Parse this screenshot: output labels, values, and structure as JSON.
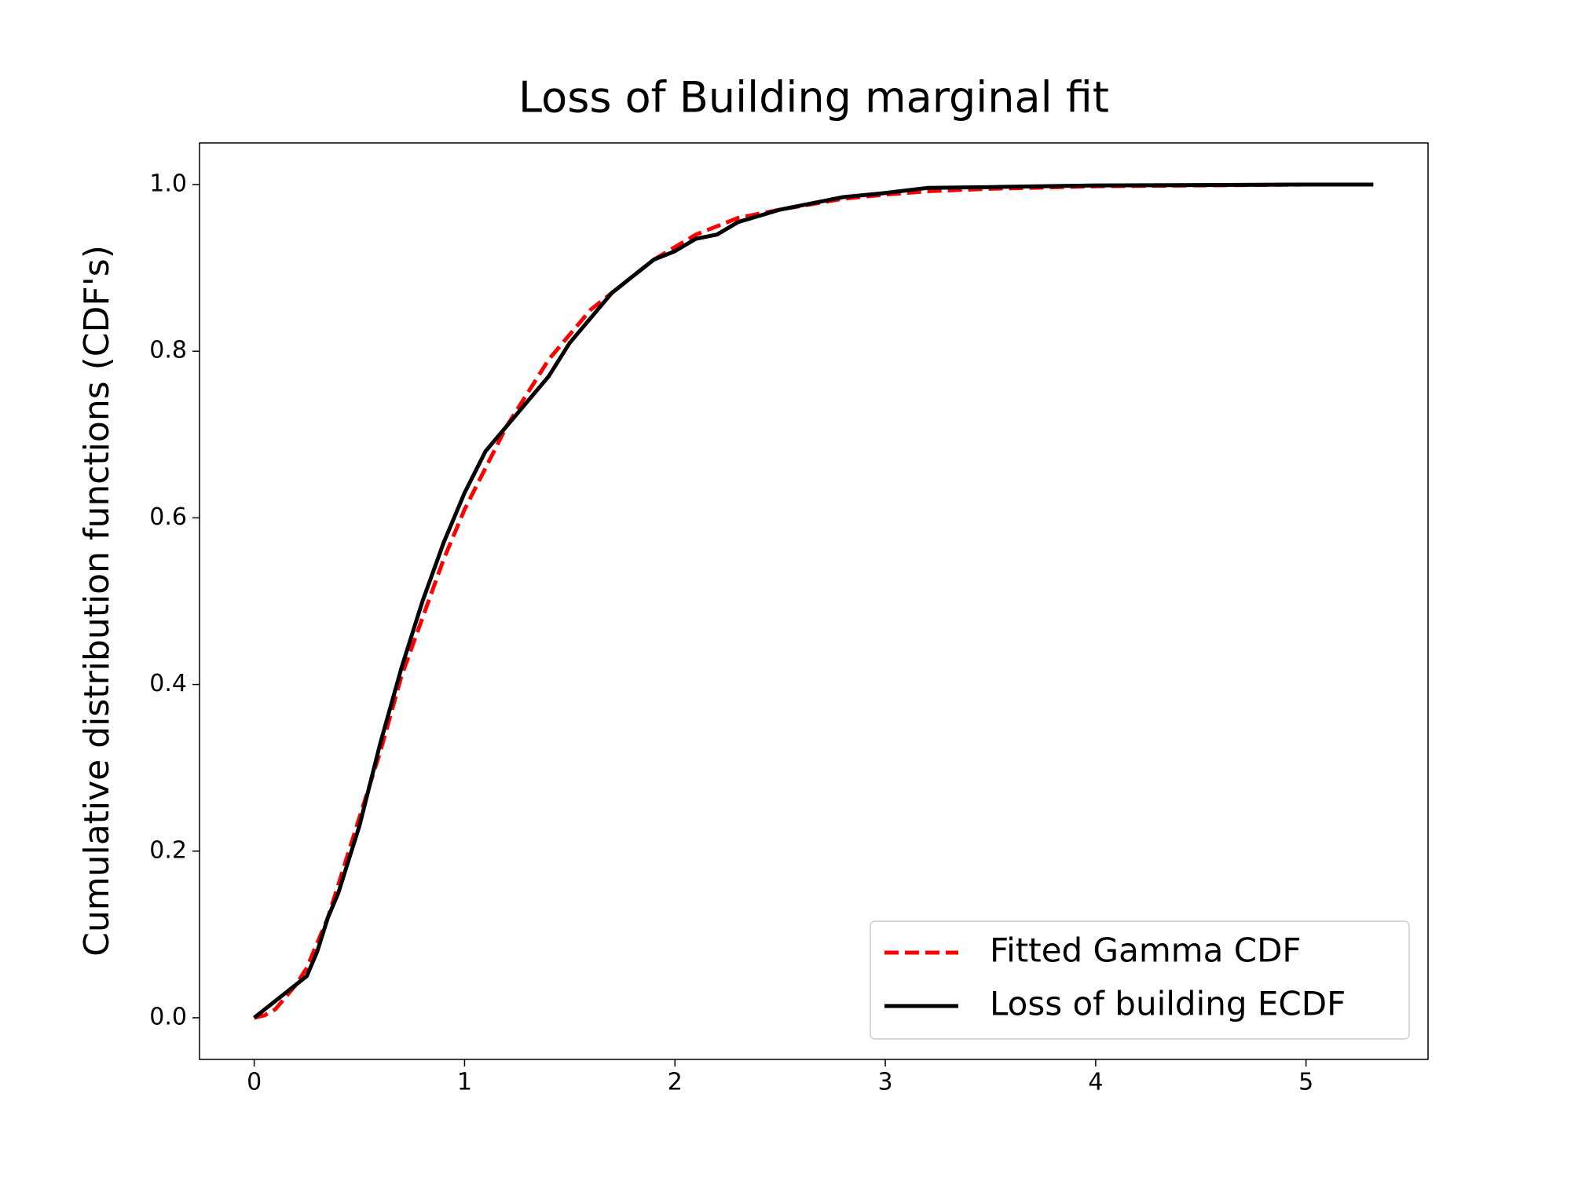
{
  "chart_data": {
    "type": "line",
    "title": "Loss of Building marginal fit",
    "ylabel": "Cumulative distribution functions (CDF's)",
    "x": [
      0,
      0.05,
      0.1,
      0.15,
      0.2,
      0.25,
      0.3,
      0.35,
      0.4,
      0.45,
      0.5,
      0.55,
      0.6,
      0.7,
      0.8,
      0.9,
      1.0,
      1.1,
      1.2,
      1.3,
      1.4,
      1.5,
      1.6,
      1.7,
      1.8,
      1.9,
      2.0,
      2.1,
      2.2,
      2.3,
      2.5,
      2.8,
      3.0,
      3.2,
      3.5,
      4.0,
      4.5,
      5.0,
      5.32
    ],
    "series": [
      {
        "name": "Fitted Gamma CDF",
        "color": "#ff0000",
        "dash": true,
        "values": [
          0,
          0.003,
          0.01,
          0.025,
          0.04,
          0.06,
          0.09,
          0.12,
          0.16,
          0.2,
          0.24,
          0.28,
          0.32,
          0.41,
          0.48,
          0.55,
          0.61,
          0.66,
          0.71,
          0.75,
          0.79,
          0.82,
          0.85,
          0.87,
          0.89,
          0.91,
          0.925,
          0.94,
          0.95,
          0.96,
          0.97,
          0.983,
          0.988,
          0.992,
          0.995,
          0.998,
          0.999,
          1.0,
          1.0
        ]
      },
      {
        "name": "Loss of building ECDF",
        "color": "#000000",
        "dash": false,
        "values": [
          0,
          0.01,
          0.02,
          0.03,
          0.04,
          0.05,
          0.08,
          0.12,
          0.15,
          0.19,
          0.23,
          0.28,
          0.33,
          0.42,
          0.5,
          0.57,
          0.63,
          0.68,
          0.71,
          0.74,
          0.77,
          0.81,
          0.84,
          0.87,
          0.89,
          0.91,
          0.92,
          0.935,
          0.94,
          0.955,
          0.97,
          0.985,
          0.99,
          0.996,
          0.997,
          0.999,
          0.9995,
          1.0,
          1.0
        ]
      }
    ],
    "xlim": [
      -0.26,
      5.58
    ],
    "xticks": [
      0,
      1,
      2,
      3,
      4,
      5
    ],
    "ylim": [
      -0.05,
      1.05
    ],
    "yticks": [
      {
        "value": 0,
        "label": "0.0"
      },
      0.2,
      0.4,
      0.6,
      0.8,
      {
        "value": 1,
        "label": "1.0"
      }
    ],
    "legend": "lower right"
  }
}
